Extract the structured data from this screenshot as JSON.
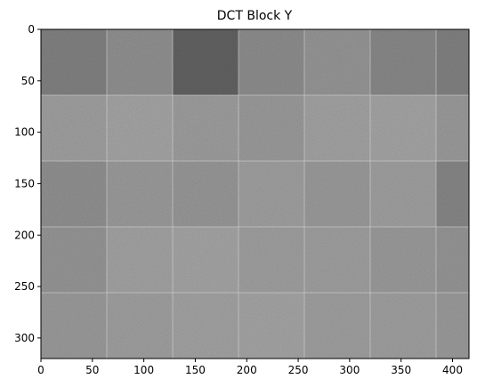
{
  "chart_data": {
    "type": "heatmap",
    "title": "DCT Block Y",
    "xlabel": "",
    "ylabel": "",
    "xlim": [
      0,
      416
    ],
    "ylim": [
      320,
      0
    ],
    "xticks": [
      0,
      50,
      100,
      150,
      200,
      250,
      300,
      350,
      400
    ],
    "yticks": [
      0,
      50,
      100,
      150,
      200,
      250,
      300
    ],
    "block_size": 64,
    "block_cols": 7,
    "block_rows": 5,
    "colormap": "gray",
    "block_means": [
      [
        0.5,
        0.56,
        0.38,
        0.55,
        0.58,
        0.53,
        0.5
      ],
      [
        0.62,
        0.64,
        0.61,
        0.6,
        0.63,
        0.64,
        0.6
      ],
      [
        0.56,
        0.6,
        0.59,
        0.62,
        0.6,
        0.62,
        0.52
      ],
      [
        0.58,
        0.63,
        0.64,
        0.62,
        0.62,
        0.6,
        0.58
      ],
      [
        0.6,
        0.62,
        0.63,
        0.64,
        0.62,
        0.62,
        0.6
      ]
    ],
    "grid": false,
    "legend": "none"
  },
  "colors": {
    "axis": "#000000",
    "background": "#ffffff"
  }
}
